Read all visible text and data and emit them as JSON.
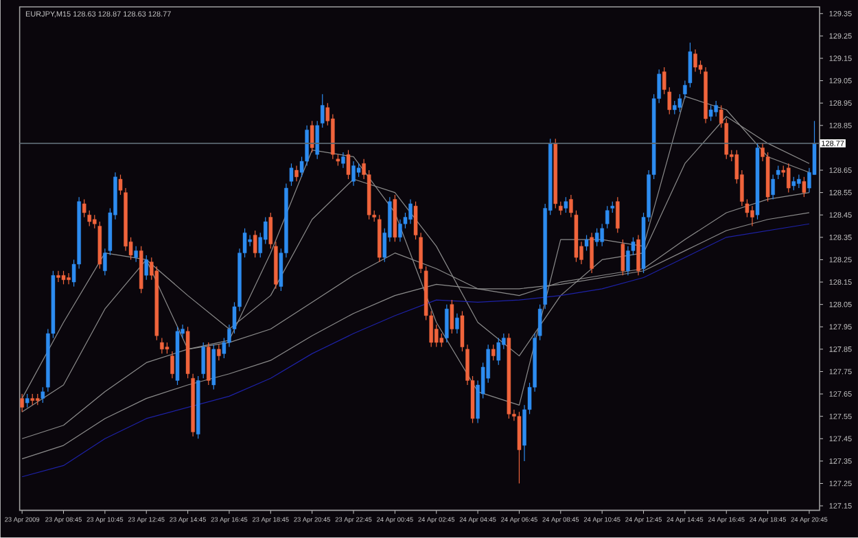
{
  "chart_data": {
    "type": "candlestick",
    "title": "EURJPY,M15  128.63 128.87 128.63 128.77",
    "x": [
      "2009-04-23T06:45",
      "2009-04-23T07:00",
      "2009-04-23T07:15",
      "2009-04-23T07:30",
      "2009-04-23T07:45",
      "2009-04-23T08:00",
      "2009-04-23T08:15",
      "2009-04-23T08:30",
      "2009-04-23T08:45",
      "2009-04-23T09:00",
      "2009-04-23T09:15",
      "2009-04-23T09:30",
      "2009-04-23T09:45",
      "2009-04-23T10:00",
      "2009-04-23T10:15",
      "2009-04-23T10:30",
      "2009-04-23T10:45",
      "2009-04-23T11:00",
      "2009-04-23T11:15",
      "2009-04-23T11:30",
      "2009-04-23T11:45",
      "2009-04-23T12:00",
      "2009-04-23T12:15",
      "2009-04-23T12:30",
      "2009-04-23T12:45",
      "2009-04-23T13:00",
      "2009-04-23T13:15",
      "2009-04-23T13:30",
      "2009-04-23T13:45",
      "2009-04-23T14:00",
      "2009-04-23T14:15",
      "2009-04-23T14:30",
      "2009-04-23T14:45",
      "2009-04-23T15:00",
      "2009-04-23T15:15",
      "2009-04-23T15:30",
      "2009-04-23T15:45",
      "2009-04-23T16:00",
      "2009-04-23T16:15",
      "2009-04-23T16:30",
      "2009-04-23T16:45",
      "2009-04-23T17:00",
      "2009-04-23T17:15",
      "2009-04-23T17:30",
      "2009-04-23T17:45",
      "2009-04-23T18:00",
      "2009-04-23T18:15",
      "2009-04-23T18:30",
      "2009-04-23T18:45",
      "2009-04-23T19:00",
      "2009-04-23T19:15",
      "2009-04-23T19:30",
      "2009-04-23T19:45",
      "2009-04-23T20:00",
      "2009-04-23T20:15",
      "2009-04-23T20:30",
      "2009-04-23T20:45",
      "2009-04-23T21:00",
      "2009-04-23T21:15",
      "2009-04-23T21:30",
      "2009-04-23T21:45",
      "2009-04-23T22:00",
      "2009-04-23T22:15",
      "2009-04-23T22:30",
      "2009-04-23T22:45",
      "2009-04-23T23:00",
      "2009-04-23T23:15",
      "2009-04-23T23:30",
      "2009-04-23T23:45",
      "2009-04-24T00:00",
      "2009-04-24T00:15",
      "2009-04-24T00:30",
      "2009-04-24T00:45",
      "2009-04-24T01:00",
      "2009-04-24T01:15",
      "2009-04-24T01:30",
      "2009-04-24T01:45",
      "2009-04-24T02:00",
      "2009-04-24T02:15",
      "2009-04-24T02:30",
      "2009-04-24T02:45",
      "2009-04-24T03:00",
      "2009-04-24T03:15",
      "2009-04-24T03:30",
      "2009-04-24T03:45",
      "2009-04-24T04:00",
      "2009-04-24T04:15",
      "2009-04-24T04:30",
      "2009-04-24T04:45",
      "2009-04-24T05:00",
      "2009-04-24T05:15",
      "2009-04-24T05:30",
      "2009-04-24T05:45",
      "2009-04-24T06:00",
      "2009-04-24T06:15",
      "2009-04-24T06:30",
      "2009-04-24T06:45",
      "2009-04-24T07:00",
      "2009-04-24T07:15",
      "2009-04-24T07:30",
      "2009-04-24T07:45",
      "2009-04-24T08:00",
      "2009-04-24T08:15",
      "2009-04-24T08:30",
      "2009-04-24T08:45",
      "2009-04-24T09:00",
      "2009-04-24T09:15",
      "2009-04-24T09:30",
      "2009-04-24T09:45",
      "2009-04-24T10:00",
      "2009-04-24T10:15",
      "2009-04-24T10:30",
      "2009-04-24T10:45",
      "2009-04-24T11:00",
      "2009-04-24T11:15",
      "2009-04-24T11:30",
      "2009-04-24T11:45",
      "2009-04-24T12:00",
      "2009-04-24T12:15",
      "2009-04-24T12:30",
      "2009-04-24T12:45",
      "2009-04-24T13:00",
      "2009-04-24T13:15",
      "2009-04-24T13:30",
      "2009-04-24T13:45",
      "2009-04-24T14:00",
      "2009-04-24T14:15",
      "2009-04-24T14:30",
      "2009-04-24T14:45",
      "2009-04-24T15:00",
      "2009-04-24T15:15",
      "2009-04-24T15:30",
      "2009-04-24T15:45",
      "2009-04-24T16:00",
      "2009-04-24T16:15",
      "2009-04-24T16:30",
      "2009-04-24T16:45",
      "2009-04-24T17:00",
      "2009-04-24T17:15",
      "2009-04-24T17:30",
      "2009-04-24T17:45",
      "2009-04-24T18:00",
      "2009-04-24T18:15",
      "2009-04-24T18:30",
      "2009-04-24T18:45",
      "2009-04-24T19:00",
      "2009-04-24T19:15",
      "2009-04-24T19:30",
      "2009-04-24T19:45",
      "2009-04-24T20:00",
      "2009-04-24T20:15",
      "2009-04-24T20:30",
      "2009-04-24T20:45",
      "2009-04-24T21:00"
    ],
    "ohlc": [
      [
        127.63,
        127.65,
        127.57,
        127.59
      ],
      [
        127.61,
        127.65,
        127.59,
        127.63
      ],
      [
        127.63,
        127.65,
        127.6,
        127.62
      ],
      [
        127.63,
        127.65,
        127.6,
        127.62
      ],
      [
        127.63,
        127.68,
        127.61,
        127.66
      ],
      [
        127.68,
        127.94,
        127.66,
        127.92
      ],
      [
        127.92,
        128.2,
        127.9,
        128.18
      ],
      [
        128.18,
        128.2,
        128.15,
        128.17
      ],
      [
        128.18,
        128.2,
        128.14,
        128.16
      ],
      [
        128.17,
        128.19,
        128.14,
        128.16
      ],
      [
        128.15,
        128.25,
        128.13,
        128.23
      ],
      [
        128.23,
        128.53,
        128.21,
        128.51
      ],
      [
        128.5,
        128.52,
        128.44,
        128.46
      ],
      [
        128.45,
        128.47,
        128.4,
        128.42
      ],
      [
        128.43,
        128.45,
        128.39,
        128.41
      ],
      [
        128.4,
        128.42,
        128.21,
        128.23
      ],
      [
        128.2,
        128.3,
        128.18,
        128.28
      ],
      [
        128.29,
        128.48,
        128.27,
        128.46
      ],
      [
        128.45,
        128.64,
        128.43,
        128.62
      ],
      [
        128.61,
        128.63,
        128.54,
        128.56
      ],
      [
        128.55,
        128.57,
        128.29,
        128.31
      ],
      [
        128.33,
        128.35,
        128.25,
        128.27
      ],
      [
        128.26,
        128.31,
        128.24,
        128.29
      ],
      [
        128.29,
        128.31,
        128.1,
        128.12
      ],
      [
        128.18,
        128.27,
        128.16,
        128.25
      ],
      [
        128.24,
        128.26,
        128.16,
        128.18
      ],
      [
        128.2,
        128.22,
        127.89,
        127.91
      ],
      [
        127.88,
        127.9,
        127.83,
        127.85
      ],
      [
        127.86,
        127.88,
        127.83,
        127.85
      ],
      [
        127.82,
        127.84,
        127.72,
        127.74
      ],
      [
        127.71,
        127.95,
        127.69,
        127.93
      ],
      [
        127.92,
        127.96,
        127.9,
        127.94
      ],
      [
        127.93,
        127.95,
        127.72,
        127.74
      ],
      [
        127.72,
        127.74,
        127.46,
        127.48
      ],
      [
        127.47,
        127.73,
        127.45,
        127.71
      ],
      [
        127.74,
        127.88,
        127.72,
        127.86
      ],
      [
        127.86,
        127.88,
        127.69,
        127.71
      ],
      [
        127.69,
        127.87,
        127.67,
        127.85
      ],
      [
        127.85,
        127.87,
        127.8,
        127.82
      ],
      [
        127.83,
        127.9,
        127.81,
        127.88
      ],
      [
        127.88,
        127.96,
        127.86,
        127.94
      ],
      [
        127.94,
        128.06,
        127.92,
        128.04
      ],
      [
        128.04,
        128.3,
        128.02,
        128.28
      ],
      [
        128.28,
        128.39,
        128.26,
        128.37
      ],
      [
        128.33,
        128.36,
        128.31,
        128.34
      ],
      [
        128.36,
        128.38,
        128.26,
        128.28
      ],
      [
        128.28,
        128.37,
        128.26,
        128.35
      ],
      [
        128.34,
        128.44,
        128.32,
        128.42
      ],
      [
        128.44,
        128.46,
        128.3,
        128.32
      ],
      [
        128.31,
        128.33,
        128.12,
        128.14
      ],
      [
        128.13,
        128.3,
        128.11,
        128.28
      ],
      [
        128.28,
        128.59,
        128.26,
        128.57
      ],
      [
        128.6,
        128.68,
        128.58,
        128.66
      ],
      [
        128.65,
        128.67,
        128.6,
        128.62
      ],
      [
        128.64,
        128.71,
        128.62,
        128.69
      ],
      [
        128.69,
        128.85,
        128.67,
        128.83
      ],
      [
        128.85,
        128.87,
        128.73,
        128.75
      ],
      [
        128.72,
        128.87,
        128.7,
        128.85
      ],
      [
        128.86,
        128.99,
        128.84,
        128.94
      ],
      [
        128.93,
        128.95,
        128.85,
        128.87
      ],
      [
        128.88,
        128.9,
        128.7,
        128.72
      ],
      [
        128.7,
        128.72,
        128.67,
        128.69
      ],
      [
        128.68,
        128.73,
        128.66,
        128.71
      ],
      [
        128.72,
        128.74,
        128.61,
        128.63
      ],
      [
        128.6,
        128.69,
        128.58,
        128.67
      ],
      [
        128.64,
        128.68,
        128.62,
        128.66
      ],
      [
        128.68,
        128.7,
        128.61,
        128.63
      ],
      [
        128.63,
        128.65,
        128.43,
        128.45
      ],
      [
        128.45,
        128.47,
        128.42,
        128.44
      ],
      [
        128.43,
        128.45,
        128.24,
        128.26
      ],
      [
        128.26,
        128.39,
        128.24,
        128.37
      ],
      [
        128.35,
        128.53,
        128.33,
        128.51
      ],
      [
        128.52,
        128.54,
        128.33,
        128.35
      ],
      [
        128.35,
        128.43,
        128.33,
        128.41
      ],
      [
        128.41,
        128.46,
        128.39,
        128.44
      ],
      [
        128.43,
        128.52,
        128.41,
        128.5
      ],
      [
        128.49,
        128.51,
        128.34,
        128.36
      ],
      [
        128.35,
        128.37,
        128.19,
        128.21
      ],
      [
        128.2,
        128.22,
        127.98,
        128.0
      ],
      [
        128.0,
        128.02,
        127.86,
        127.88
      ],
      [
        127.94,
        127.96,
        127.86,
        127.88
      ],
      [
        127.9,
        127.92,
        127.86,
        127.88
      ],
      [
        127.9,
        128.05,
        127.88,
        128.03
      ],
      [
        128.05,
        128.07,
        127.92,
        127.94
      ],
      [
        127.94,
        128.01,
        127.92,
        127.99
      ],
      [
        128.0,
        128.02,
        127.84,
        127.86
      ],
      [
        127.85,
        127.87,
        127.69,
        127.71
      ],
      [
        127.71,
        127.73,
        127.52,
        127.54
      ],
      [
        127.54,
        127.71,
        127.52,
        127.69
      ],
      [
        127.65,
        127.79,
        127.63,
        127.77
      ],
      [
        127.72,
        127.87,
        127.7,
        127.85
      ],
      [
        127.85,
        127.87,
        127.8,
        127.82
      ],
      [
        127.8,
        127.9,
        127.78,
        127.88
      ],
      [
        127.87,
        127.92,
        127.85,
        127.9
      ],
      [
        127.9,
        127.92,
        127.54,
        127.56
      ],
      [
        127.56,
        127.58,
        127.53,
        127.55
      ],
      [
        127.55,
        127.57,
        127.25,
        127.4
      ],
      [
        127.42,
        127.6,
        127.35,
        127.58
      ],
      [
        127.58,
        127.7,
        127.56,
        127.68
      ],
      [
        127.68,
        127.92,
        127.66,
        127.9
      ],
      [
        127.91,
        128.05,
        127.89,
        128.03
      ],
      [
        128.05,
        128.5,
        128.03,
        128.48
      ],
      [
        128.47,
        128.79,
        128.45,
        128.77
      ],
      [
        128.77,
        128.79,
        128.48,
        128.5
      ],
      [
        128.49,
        128.51,
        128.45,
        128.47
      ],
      [
        128.48,
        128.53,
        128.46,
        128.51
      ],
      [
        128.52,
        128.54,
        128.44,
        128.46
      ],
      [
        128.45,
        128.47,
        128.24,
        128.26
      ],
      [
        128.31,
        128.33,
        128.23,
        128.25
      ],
      [
        128.31,
        128.36,
        128.29,
        128.34
      ],
      [
        128.35,
        128.37,
        128.19,
        128.21
      ],
      [
        128.33,
        128.39,
        128.31,
        128.37
      ],
      [
        128.33,
        128.41,
        128.31,
        128.39
      ],
      [
        128.41,
        128.49,
        128.39,
        128.47
      ],
      [
        128.48,
        128.51,
        128.46,
        128.49
      ],
      [
        128.51,
        128.53,
        128.37,
        128.39
      ],
      [
        128.32,
        128.34,
        128.18,
        128.2
      ],
      [
        128.2,
        128.31,
        128.18,
        128.29
      ],
      [
        128.29,
        128.35,
        128.27,
        128.33
      ],
      [
        128.34,
        128.36,
        128.18,
        128.2
      ],
      [
        128.21,
        128.46,
        128.19,
        128.44
      ],
      [
        128.44,
        128.65,
        128.42,
        128.63
      ],
      [
        128.63,
        128.99,
        128.61,
        128.97
      ],
      [
        128.97,
        129.1,
        128.95,
        129.08
      ],
      [
        129.09,
        129.11,
        128.99,
        129.01
      ],
      [
        129.0,
        129.02,
        128.9,
        128.92
      ],
      [
        128.92,
        128.96,
        128.9,
        128.94
      ],
      [
        128.93,
        128.99,
        128.91,
        128.97
      ],
      [
        128.99,
        129.05,
        128.97,
        129.03
      ],
      [
        129.04,
        129.22,
        129.02,
        129.18
      ],
      [
        129.17,
        129.19,
        129.09,
        129.11
      ],
      [
        129.12,
        129.14,
        129.08,
        129.1
      ],
      [
        129.09,
        129.11,
        128.86,
        128.88
      ],
      [
        128.89,
        128.94,
        128.87,
        128.92
      ],
      [
        128.91,
        128.96,
        128.89,
        128.94
      ],
      [
        128.92,
        128.94,
        128.84,
        128.86
      ],
      [
        128.86,
        128.88,
        128.7,
        128.72
      ],
      [
        128.72,
        128.74,
        128.69,
        128.71
      ],
      [
        128.72,
        128.74,
        128.59,
        128.61
      ],
      [
        128.63,
        128.65,
        128.49,
        128.51
      ],
      [
        128.5,
        128.52,
        128.44,
        128.46
      ],
      [
        128.47,
        128.49,
        128.4,
        128.44
      ],
      [
        128.45,
        128.77,
        128.43,
        128.75
      ],
      [
        128.75,
        128.77,
        128.69,
        128.71
      ],
      [
        128.71,
        128.73,
        128.51,
        128.53
      ],
      [
        128.54,
        128.63,
        128.52,
        128.61
      ],
      [
        128.63,
        128.67,
        128.61,
        128.65
      ],
      [
        128.65,
        128.67,
        128.62,
        128.64
      ],
      [
        128.66,
        128.68,
        128.55,
        128.57
      ],
      [
        128.58,
        128.62,
        128.56,
        128.6
      ],
      [
        128.59,
        128.63,
        128.57,
        128.61
      ],
      [
        128.6,
        128.62,
        128.53,
        128.55
      ],
      [
        128.57,
        128.66,
        128.55,
        128.64
      ],
      [
        128.63,
        128.87,
        128.63,
        128.77
      ]
    ],
    "colors": [
      "#f0643c",
      "#2d8cf0",
      "#f0643c",
      "#f0643c",
      "#2d8cf0",
      "#2d8cf0",
      "#2d8cf0",
      "#f0643c",
      "#f0643c",
      "#f0643c",
      "#2d8cf0",
      "#2d8cf0",
      "#f0643c",
      "#f0643c",
      "#f0643c",
      "#f0643c",
      "#2d8cf0",
      "#2d8cf0",
      "#2d8cf0",
      "#f0643c",
      "#f0643c",
      "#f0643c",
      "#2d8cf0",
      "#f0643c",
      "#2d8cf0",
      "#f0643c",
      "#f0643c",
      "#f0643c",
      "#f0643c",
      "#f0643c",
      "#2d8cf0",
      "#2d8cf0",
      "#f0643c",
      "#f0643c",
      "#2d8cf0",
      "#2d8cf0",
      "#f0643c",
      "#2d8cf0",
      "#f0643c",
      "#2d8cf0",
      "#2d8cf0",
      "#2d8cf0",
      "#2d8cf0",
      "#2d8cf0",
      "#2d8cf0",
      "#f0643c",
      "#2d8cf0",
      "#2d8cf0",
      "#f0643c",
      "#f0643c",
      "#2d8cf0",
      "#2d8cf0",
      "#2d8cf0",
      "#f0643c",
      "#2d8cf0",
      "#2d8cf0",
      "#f0643c",
      "#2d8cf0",
      "#2d8cf0",
      "#f0643c",
      "#f0643c",
      "#f0643c",
      "#2d8cf0",
      "#f0643c",
      "#2d8cf0",
      "#2d8cf0",
      "#f0643c",
      "#f0643c",
      "#f0643c",
      "#f0643c",
      "#2d8cf0",
      "#2d8cf0",
      "#f0643c",
      "#2d8cf0",
      "#2d8cf0",
      "#2d8cf0",
      "#f0643c",
      "#f0643c",
      "#f0643c",
      "#f0643c",
      "#f0643c",
      "#f0643c",
      "#2d8cf0",
      "#f0643c",
      "#2d8cf0",
      "#f0643c",
      "#f0643c",
      "#f0643c",
      "#2d8cf0",
      "#2d8cf0",
      "#2d8cf0",
      "#f0643c",
      "#2d8cf0",
      "#2d8cf0",
      "#f0643c",
      "#f0643c",
      "#f0643c",
      "#2d8cf0",
      "#2d8cf0",
      "#2d8cf0",
      "#2d8cf0",
      "#2d8cf0",
      "#2d8cf0",
      "#f0643c",
      "#f0643c",
      "#2d8cf0",
      "#f0643c",
      "#f0643c",
      "#f0643c",
      "#2d8cf0",
      "#f0643c",
      "#2d8cf0",
      "#2d8cf0",
      "#2d8cf0",
      "#2d8cf0",
      "#f0643c",
      "#f0643c",
      "#2d8cf0",
      "#2d8cf0",
      "#f0643c",
      "#2d8cf0",
      "#2d8cf0",
      "#2d8cf0",
      "#2d8cf0",
      "#f0643c",
      "#f0643c",
      "#2d8cf0",
      "#2d8cf0",
      "#2d8cf0",
      "#2d8cf0",
      "#f0643c",
      "#f0643c",
      "#f0643c",
      "#2d8cf0",
      "#2d8cf0",
      "#f0643c",
      "#f0643c",
      "#f0643c",
      "#f0643c",
      "#f0643c",
      "#f0643c",
      "#f0643c",
      "#2d8cf0",
      "#f0643c",
      "#f0643c",
      "#2d8cf0",
      "#2d8cf0",
      "#f0643c",
      "#f0643c",
      "#2d8cf0",
      "#2d8cf0",
      "#f0643c",
      "#2d8cf0",
      "#2d8cf0"
    ],
    "series": [
      {
        "type": "line",
        "color": "#8c8c8c",
        "x": [
          "2009-04-23T06:45",
          "2009-04-23T08:45",
          "2009-04-23T10:45",
          "2009-04-23T12:45",
          "2009-04-23T14:45",
          "2009-04-23T16:45",
          "2009-04-23T18:45",
          "2009-04-23T20:45",
          "2009-04-23T22:45",
          "2009-04-24T00:45",
          "2009-04-24T02:45",
          "2009-04-24T04:45",
          "2009-04-24T06:45",
          "2009-04-24T08:45",
          "2009-04-24T10:45",
          "2009-04-24T12:45",
          "2009-04-24T14:45",
          "2009-04-24T16:45",
          "2009-04-24T18:45",
          "2009-04-24T20:45"
        ],
        "values": [
          127.63,
          127.97,
          128.28,
          128.25,
          127.85,
          127.89,
          128.28,
          128.74,
          128.71,
          128.46,
          127.97,
          127.66,
          127.6,
          128.34,
          128.34,
          128.31,
          128.98,
          128.92,
          128.71,
          128.64
        ]
      },
      {
        "type": "line",
        "color": "#8c8c8c",
        "x": [
          "2009-04-23T06:45",
          "2009-04-23T08:45",
          "2009-04-23T10:45",
          "2009-04-23T12:45",
          "2009-04-23T14:45",
          "2009-04-23T16:45",
          "2009-04-23T18:45",
          "2009-04-23T20:45",
          "2009-04-23T22:45",
          "2009-04-24T00:45",
          "2009-04-24T02:45",
          "2009-04-24T04:45",
          "2009-04-24T06:45",
          "2009-04-24T08:45",
          "2009-04-24T10:45",
          "2009-04-24T12:45",
          "2009-04-24T14:45",
          "2009-04-24T16:45",
          "2009-04-24T18:45",
          "2009-04-24T20:45"
        ],
        "values": [
          127.57,
          127.69,
          128.03,
          128.25,
          128.09,
          127.94,
          128.09,
          128.43,
          128.61,
          128.55,
          128.31,
          127.97,
          127.82,
          128.09,
          128.25,
          128.28,
          128.68,
          128.89,
          128.77,
          128.68
        ]
      },
      {
        "type": "line",
        "color": "#8c8c8c",
        "x": [
          "2009-04-23T06:45",
          "2009-04-23T08:45",
          "2009-04-23T10:45",
          "2009-04-23T12:45",
          "2009-04-23T14:45",
          "2009-04-23T16:45",
          "2009-04-23T18:45",
          "2009-04-23T20:45",
          "2009-04-23T22:45",
          "2009-04-24T00:45",
          "2009-04-24T02:45",
          "2009-04-24T04:45",
          "2009-04-24T06:45",
          "2009-04-24T08:45",
          "2009-04-24T10:45",
          "2009-04-24T12:45",
          "2009-04-24T14:45",
          "2009-04-24T16:45",
          "2009-04-24T18:45",
          "2009-04-24T20:45"
        ],
        "values": [
          127.45,
          127.51,
          127.66,
          127.79,
          127.85,
          127.88,
          127.94,
          128.06,
          128.18,
          128.28,
          128.21,
          128.12,
          128.09,
          128.15,
          128.18,
          128.21,
          128.34,
          128.46,
          128.52,
          128.55
        ]
      },
      {
        "type": "line",
        "color": "#8c8c8c",
        "x": [
          "2009-04-23T06:45",
          "2009-04-23T08:45",
          "2009-04-23T10:45",
          "2009-04-23T12:45",
          "2009-04-23T14:45",
          "2009-04-23T16:45",
          "2009-04-23T18:45",
          "2009-04-23T20:45",
          "2009-04-23T22:45",
          "2009-04-24T00:45",
          "2009-04-24T02:45",
          "2009-04-24T04:45",
          "2009-04-24T06:45",
          "2009-04-24T08:45",
          "2009-04-24T10:45",
          "2009-04-24T12:45",
          "2009-04-24T14:45",
          "2009-04-24T16:45",
          "2009-04-24T18:45",
          "2009-04-24T20:45"
        ],
        "values": [
          127.36,
          127.42,
          127.54,
          127.63,
          127.69,
          127.74,
          127.8,
          127.91,
          128.01,
          128.09,
          128.14,
          128.12,
          128.12,
          128.14,
          128.17,
          128.2,
          128.29,
          128.38,
          128.43,
          128.46
        ]
      },
      {
        "type": "line",
        "color": "#1e22a8",
        "x": [
          "2009-04-23T06:45",
          "2009-04-23T08:45",
          "2009-04-23T10:45",
          "2009-04-23T12:45",
          "2009-04-23T14:45",
          "2009-04-23T16:45",
          "2009-04-23T18:45",
          "2009-04-23T20:45",
          "2009-04-23T22:45",
          "2009-04-24T00:45",
          "2009-04-24T02:45",
          "2009-04-24T04:45",
          "2009-04-24T06:45",
          "2009-04-24T08:45",
          "2009-04-24T10:45",
          "2009-04-24T12:45",
          "2009-04-24T14:45",
          "2009-04-24T16:45",
          "2009-04-24T18:45",
          "2009-04-24T20:45"
        ],
        "values": [
          127.28,
          127.33,
          127.45,
          127.54,
          127.59,
          127.64,
          127.72,
          127.83,
          127.92,
          128.0,
          128.07,
          128.06,
          128.07,
          128.09,
          128.12,
          128.17,
          128.26,
          128.35,
          128.38,
          128.41
        ]
      }
    ],
    "xlim": [
      "2009-04-23T06:38",
      "2009-04-24T21:15"
    ],
    "ylim": [
      127.13,
      129.38
    ],
    "xticks": [
      {
        "value": "2009-04-23T06:45",
        "label": "23 Apr 2009"
      },
      {
        "value": "2009-04-23T08:45",
        "label": "23 Apr 08:45"
      },
      {
        "value": "2009-04-23T10:45",
        "label": "23 Apr 10:45"
      },
      {
        "value": "2009-04-23T12:45",
        "label": "23 Apr 12:45"
      },
      {
        "value": "2009-04-23T14:45",
        "label": "23 Apr 14:45"
      },
      {
        "value": "2009-04-23T16:45",
        "label": "23 Apr 16:45"
      },
      {
        "value": "2009-04-23T18:45",
        "label": "23 Apr 18:45"
      },
      {
        "value": "2009-04-23T20:45",
        "label": "23 Apr 20:45"
      },
      {
        "value": "2009-04-23T22:45",
        "label": "23 Apr 22:45"
      },
      {
        "value": "2009-04-24T00:45",
        "label": "24 Apr 00:45"
      },
      {
        "value": "2009-04-24T02:45",
        "label": "24 Apr 02:45"
      },
      {
        "value": "2009-04-24T04:45",
        "label": "24 Apr 04:45"
      },
      {
        "value": "2009-04-24T06:45",
        "label": "24 Apr 06:45"
      },
      {
        "value": "2009-04-24T08:45",
        "label": "24 Apr 08:45"
      },
      {
        "value": "2009-04-24T10:45",
        "label": "24 Apr 10:45"
      },
      {
        "value": "2009-04-24T12:45",
        "label": "24 Apr 12:45"
      },
      {
        "value": "2009-04-24T14:45",
        "label": "24 Apr 14:45"
      },
      {
        "value": "2009-04-24T16:45",
        "label": "24 Apr 16:45"
      },
      {
        "value": "2009-04-24T18:45",
        "label": "24 Apr 18:45"
      },
      {
        "value": "2009-04-24T20:45",
        "label": "24 Apr 20:45"
      }
    ],
    "yticks": [
      127.15,
      127.25,
      127.35,
      127.45,
      127.55,
      127.65,
      127.75,
      127.85,
      127.95,
      128.05,
      128.15,
      128.25,
      128.35,
      128.45,
      128.55,
      128.65,
      128.85,
      128.95,
      129.05,
      129.15,
      129.25,
      129.35
    ],
    "ref_lines": [
      {
        "axis": "y",
        "value": 128.77,
        "label": "128.77",
        "color": "#5a6770"
      }
    ]
  }
}
